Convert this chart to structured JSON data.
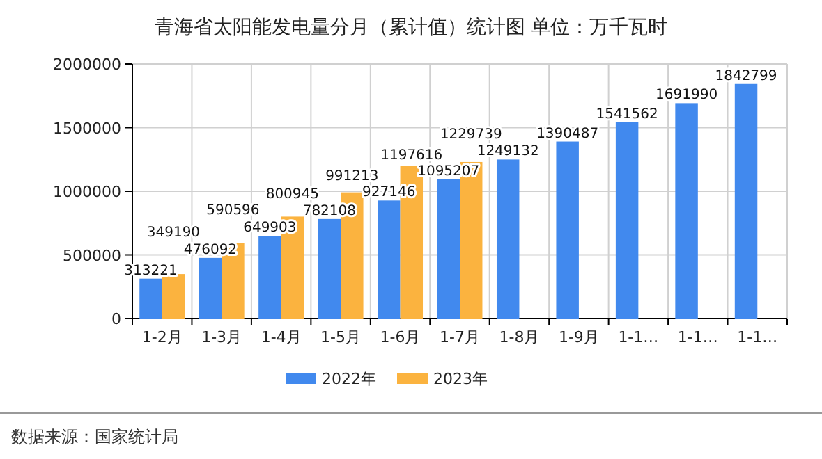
{
  "chart_data": {
    "type": "bar",
    "title": "青海省太阳能发电量分月（累计值）统计图 单位：万千瓦时",
    "categories": [
      "1-2月",
      "1-3月",
      "1-4月",
      "1-5月",
      "1-6月",
      "1-7月",
      "1-8月",
      "1-9月",
      "1-1…",
      "1-1…",
      "1-1…"
    ],
    "series": [
      {
        "name": "2022年",
        "color": "#4189ee",
        "values": [
          313221,
          476092,
          649903,
          782108,
          927146,
          1095207,
          1249132,
          1390487,
          1541562,
          1691990,
          1842799
        ]
      },
      {
        "name": "2023年",
        "color": "#fbb33f",
        "values": [
          349190,
          590596,
          800945,
          991213,
          1197616,
          1229739,
          null,
          null,
          null,
          null,
          null
        ]
      }
    ],
    "ylim": [
      0,
      2000000
    ],
    "yticks": [
      0,
      500000,
      1000000,
      1500000,
      2000000
    ],
    "grid": true,
    "legend": "bottom",
    "data_labels": true,
    "annotations": [
      "数据来源：国家统计局"
    ]
  }
}
